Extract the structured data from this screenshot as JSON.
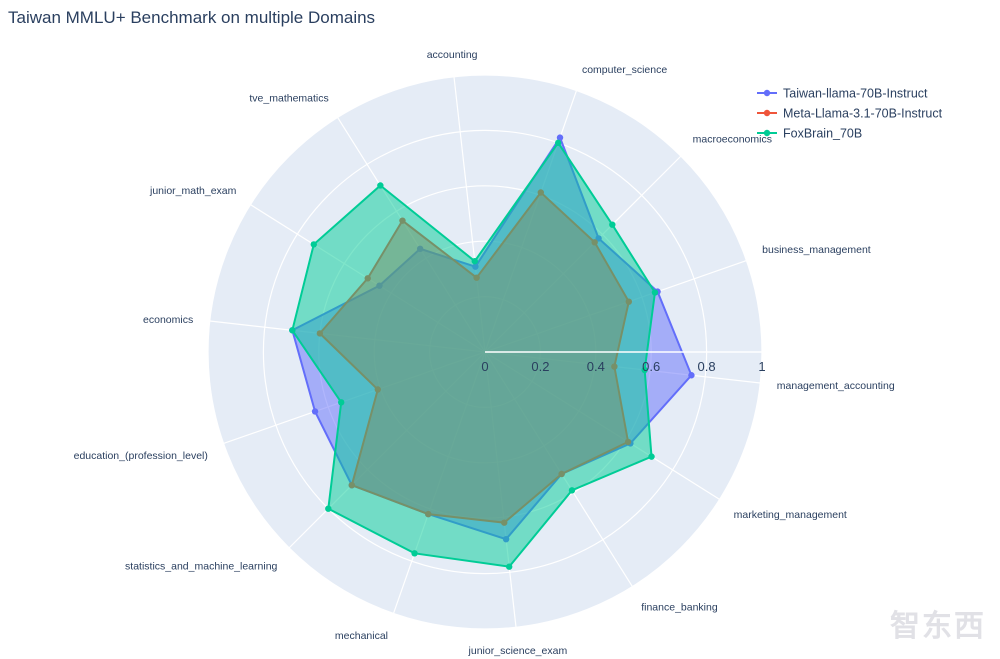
{
  "chart_data": {
    "type": "radar",
    "title": "Taiwan MMLU+ Benchmark on multiple Domains",
    "categories": [
      "accounting",
      "computer_science",
      "macroeconomics",
      "business_management",
      "management_accounting",
      "marketing_management",
      "finance_banking",
      "junior_science_exam",
      "mechanical",
      "statistics_and_machine_learning",
      "education_(profession_level)",
      "economics",
      "junior_math_exam",
      "tve_mathematics"
    ],
    "radial_range": [
      0,
      1
    ],
    "radial_ticks": [
      "0",
      "0.2",
      "0.4",
      "0.6",
      "0.8",
      "1"
    ],
    "legend_position": "top-right",
    "series": [
      {
        "name": "Taiwan-llama-70B-Instruct",
        "color": "#636efa",
        "values": [
          0.31,
          0.82,
          0.58,
          0.66,
          0.75,
          0.62,
          0.52,
          0.68,
          0.62,
          0.68,
          0.65,
          0.7,
          0.45,
          0.44
        ]
      },
      {
        "name": "Meta-Llama-3.1-70B-Instruct",
        "color": "#ef553b",
        "values": [
          0.27,
          0.61,
          0.56,
          0.55,
          0.47,
          0.61,
          0.52,
          0.62,
          0.62,
          0.68,
          0.41,
          0.6,
          0.5,
          0.56
        ]
      },
      {
        "name": "FoxBrain_70B",
        "color": "#00cc96",
        "values": [
          0.33,
          0.8,
          0.65,
          0.65,
          0.58,
          0.71,
          0.59,
          0.78,
          0.77,
          0.8,
          0.55,
          0.7,
          0.73,
          0.71
        ]
      }
    ]
  },
  "watermark": "智东西"
}
